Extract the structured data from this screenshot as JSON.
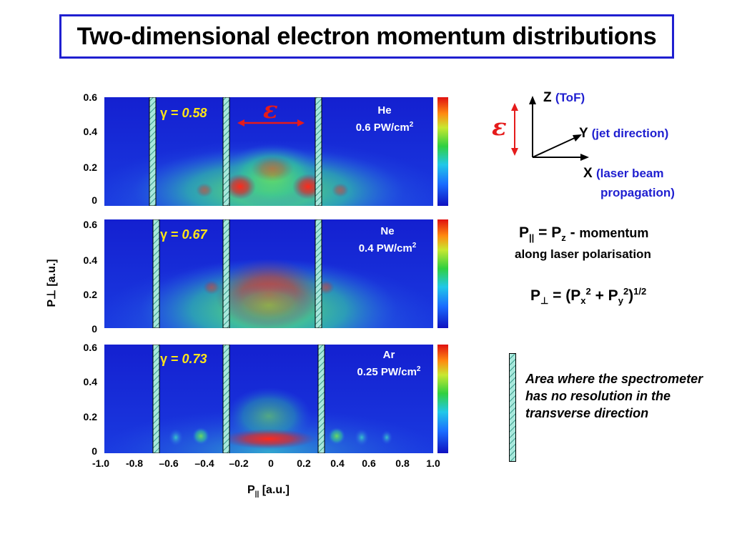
{
  "title": "Two-dimensional electron momentum distributions",
  "y_axis_label": "P⊥ [a.u.]",
  "x_axis_label_main": "P",
  "x_axis_label_sub": "||",
  "x_axis_label_unit": " [a.u.]",
  "x_ticks": [
    "-1.0",
    "-0.8",
    "–0.6",
    "–0.4",
    "–0.2",
    "0",
    "0.2",
    "0.4",
    "0.6",
    "0.8",
    "1.0"
  ],
  "y_ticks": [
    "0.6",
    "0.4",
    "0.2",
    "0"
  ],
  "epsilon": "ε",
  "panels": [
    {
      "gamma_symbol": "γ = ",
      "gamma_value": "0.58",
      "element": "He",
      "intensity": "0.6 PW/cm",
      "intensity_sup": "2"
    },
    {
      "gamma_symbol": "γ = ",
      "gamma_value": "0.67",
      "element": "Ne",
      "intensity": "0.4 PW/cm",
      "intensity_sup": "2"
    },
    {
      "gamma_symbol": "γ = ",
      "gamma_value": "0.73",
      "element": "Ar",
      "intensity": "0.25 PW/cm",
      "intensity_sup": "2"
    }
  ],
  "coords": {
    "z": "Z",
    "z_note": "ToF",
    "y": "Y",
    "y_note": "(jet direction)",
    "x": "X",
    "x_note_1": "(laser beam",
    "x_note_2": "propagation)"
  },
  "formula_par": {
    "lhs": "P",
    "lhs_sub": "||",
    "eq": " = P",
    "rhs_sub": "z",
    "dash": "  - ",
    "desc1": "momentum",
    "desc2": "along laser polarisation"
  },
  "formula_perp": {
    "lhs": "P",
    "lhs_sub": "⊥",
    "mid": " = (P",
    "x_sub": "x",
    "sq": "2",
    "plus": " + P",
    "y_sub": "y",
    "close": ")",
    "exp": "1/2"
  },
  "legend_text": "Area where the spectrometer has no resolution in the transverse direction",
  "colors": {
    "background_plot": "#1a2bd8",
    "accent_blue": "#1f1fd0",
    "epsilon_red": "#e51b1b",
    "gamma_yellow": "#ffe617",
    "hatched_strip": "#7fd8c8"
  }
}
